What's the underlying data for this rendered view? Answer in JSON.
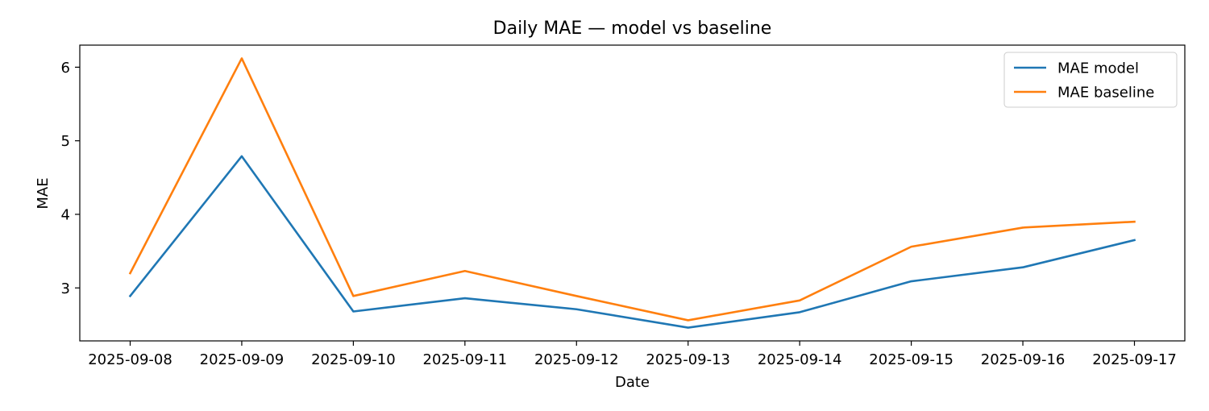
{
  "chart_data": {
    "type": "line",
    "title": "Daily MAE — model vs baseline",
    "xlabel": "Date",
    "ylabel": "MAE",
    "x": [
      "2025-09-08",
      "2025-09-09",
      "2025-09-10",
      "2025-09-11",
      "2025-09-12",
      "2025-09-13",
      "2025-09-14",
      "2025-09-15",
      "2025-09-16",
      "2025-09-17"
    ],
    "series": [
      {
        "name": "MAE model",
        "color": "#1f77b4",
        "values": [
          2.89,
          4.79,
          2.68,
          2.86,
          2.71,
          2.46,
          2.67,
          3.09,
          3.28,
          3.65
        ]
      },
      {
        "name": "MAE baseline",
        "color": "#ff7f0e",
        "values": [
          3.2,
          6.12,
          2.89,
          3.23,
          2.89,
          2.56,
          2.83,
          3.56,
          3.82,
          3.9
        ]
      }
    ],
    "yticks": [
      3,
      4,
      5,
      6
    ],
    "ylim": [
      2.28,
      6.3
    ],
    "grid": false,
    "legend": "top-right"
  }
}
